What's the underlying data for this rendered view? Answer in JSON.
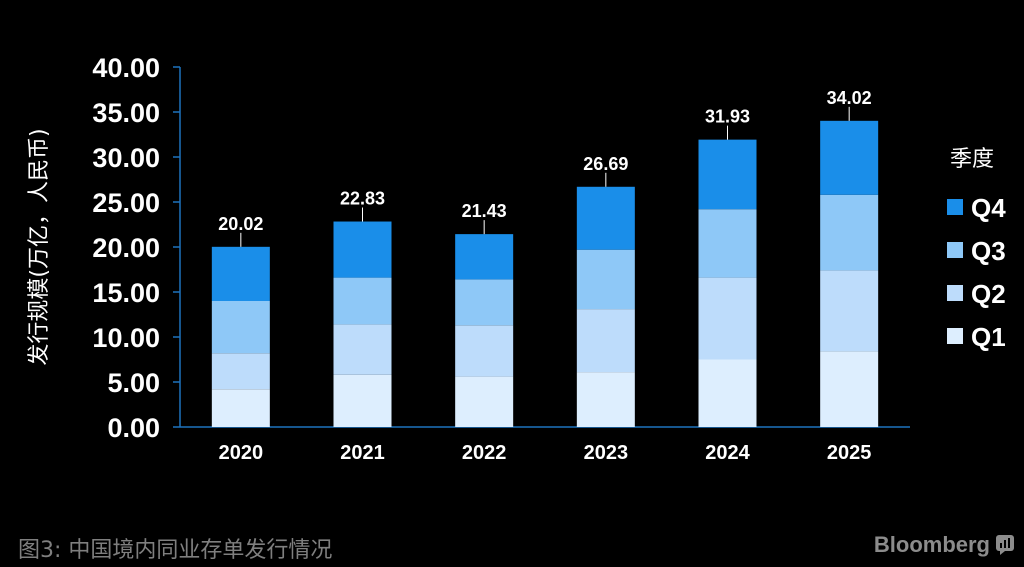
{
  "chart_data": {
    "type": "bar",
    "stacked": true,
    "categories": [
      "2020",
      "2021",
      "2022",
      "2023",
      "2024",
      "2025"
    ],
    "series": [
      {
        "name": "Q1",
        "color": "#ddeefe",
        "values": [
          4.2,
          5.8,
          5.6,
          6.1,
          7.5,
          8.4
        ]
      },
      {
        "name": "Q2",
        "color": "#bddcfb",
        "values": [
          4.0,
          5.6,
          5.7,
          7.0,
          9.1,
          9.0
        ]
      },
      {
        "name": "Q3",
        "color": "#8ec8f7",
        "values": [
          5.8,
          5.2,
          5.1,
          6.6,
          7.6,
          8.4
        ]
      },
      {
        "name": "Q4",
        "color": "#1a8ee9",
        "values": [
          6.02,
          6.23,
          5.03,
          6.99,
          7.73,
          8.22
        ]
      }
    ],
    "totals": [
      "20.02",
      "22.83",
      "21.43",
      "26.69",
      "31.93",
      "34.02"
    ],
    "yticks": [
      "0.00",
      "5.00",
      "10.00",
      "15.00",
      "20.00",
      "25.00",
      "30.00",
      "35.00",
      "40.00"
    ],
    "ylim": [
      0,
      40
    ],
    "ylabel": "发行规模(万亿，人民币)",
    "legend_title": "季度",
    "legend_position": "right",
    "grid": false
  },
  "caption": "图3: 中国境内同业存单发行情况",
  "brand": "Bloomberg",
  "brand_icon": "bloomberg-logo-icon"
}
